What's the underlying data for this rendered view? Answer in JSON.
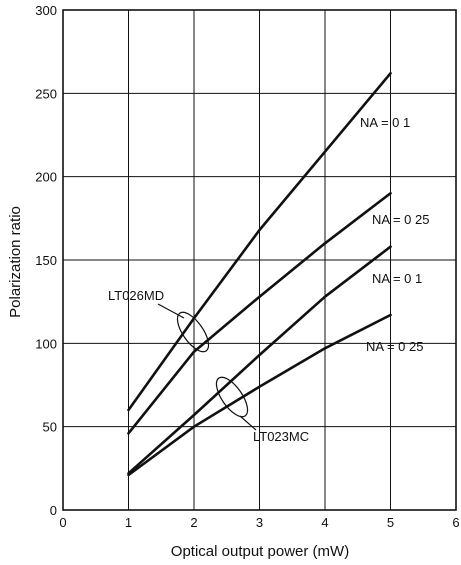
{
  "chart_data": {
    "type": "line",
    "xlabel": "Optical output power (mW)",
    "ylabel": "Polarization ratio",
    "xlim": [
      0,
      6
    ],
    "ylim": [
      0,
      300
    ],
    "xticks": [
      "0",
      "1",
      "2",
      "3",
      "4",
      "5",
      "6"
    ],
    "yticks": [
      "0",
      "50",
      "100",
      "150",
      "200",
      "250",
      "300"
    ],
    "grid": true,
    "series": [
      {
        "x": [
          1,
          2,
          3,
          4,
          5
        ],
        "values": [
          60,
          115,
          168,
          215,
          262
        ]
      },
      {
        "x": [
          1,
          2,
          3,
          4,
          5
        ],
        "values": [
          46,
          95,
          128,
          160,
          190
        ]
      },
      {
        "x": [
          1,
          2,
          3,
          4,
          5
        ],
        "values": [
          22,
          57,
          93,
          128,
          158
        ]
      },
      {
        "x": [
          1,
          2,
          3,
          4,
          5
        ],
        "values": [
          21,
          50,
          74,
          97,
          117
        ]
      }
    ],
    "annotations": [
      {
        "text": "NA = 0 1",
        "series": 0
      },
      {
        "text": "NA = 0 25",
        "series": 1
      },
      {
        "text": "NA = 0 1",
        "series": 2
      },
      {
        "text": "NA = 0 25",
        "series": 3
      },
      {
        "text": "LT026MD",
        "group": [
          0,
          1
        ]
      },
      {
        "text": "LT023MC",
        "group": [
          2,
          3
        ]
      }
    ]
  }
}
